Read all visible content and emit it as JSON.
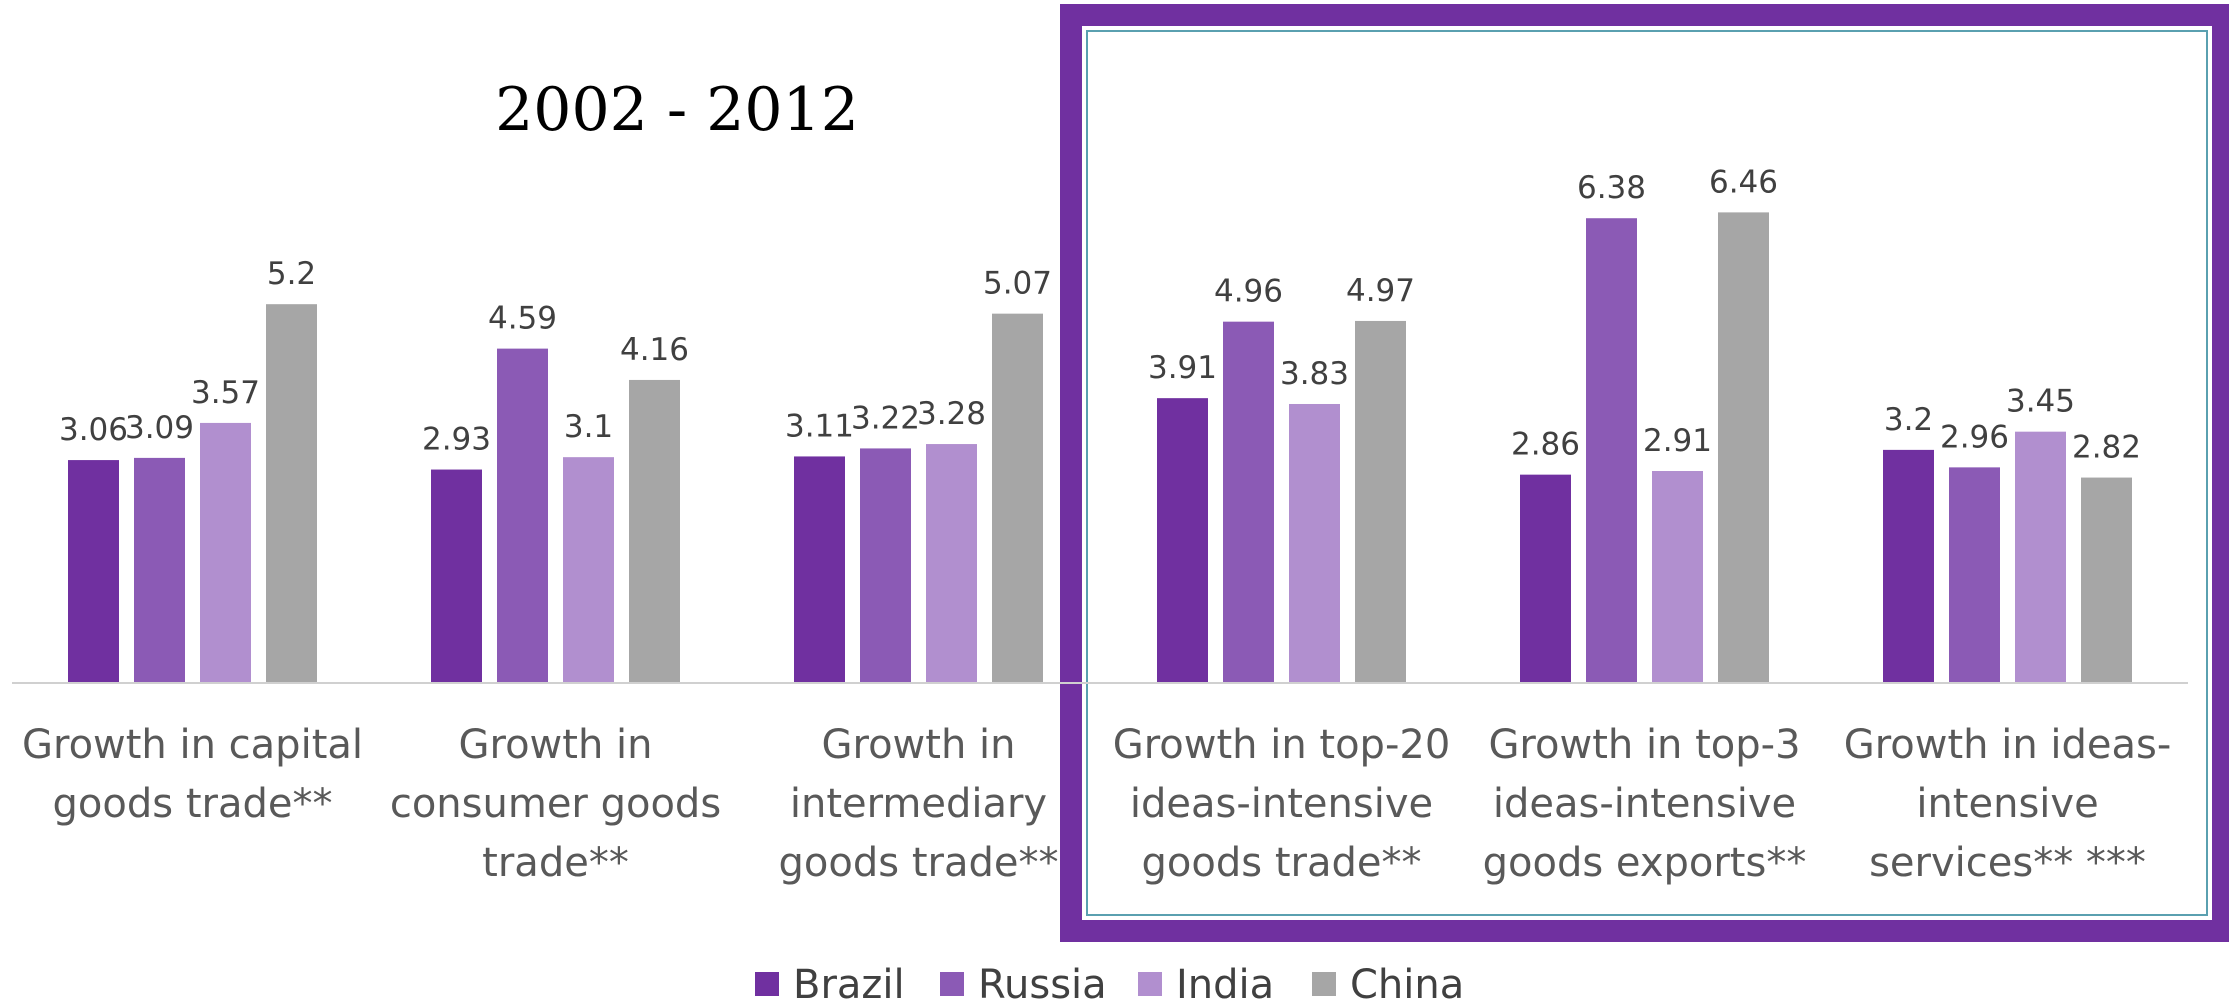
{
  "chart_data": {
    "type": "bar",
    "title": "2002 - 2012",
    "categories": [
      [
        "Growth in capital",
        "goods trade**"
      ],
      [
        "Growth in",
        "consumer goods",
        "trade**"
      ],
      [
        "Growth in",
        "intermediary",
        "goods trade**"
      ],
      [
        "Growth in top-20",
        "ideas-intensive",
        "goods trade**"
      ],
      [
        "Growth in top-3",
        "ideas-intensive",
        "goods exports**"
      ],
      [
        "Growth in ideas-",
        "intensive",
        "services** ***"
      ]
    ],
    "series": [
      {
        "name": "Brazil",
        "color": "#7030a0",
        "values": [
          3.06,
          2.93,
          3.11,
          3.91,
          2.86,
          3.2
        ]
      },
      {
        "name": "Russia",
        "color": "#8b5ab5",
        "values": [
          3.09,
          4.59,
          3.22,
          4.96,
          6.38,
          2.96
        ]
      },
      {
        "name": "India",
        "color": "#b18fcf",
        "values": [
          3.57,
          3.1,
          3.28,
          3.83,
          2.91,
          3.45
        ]
      },
      {
        "name": "China",
        "color": "#a6a6a6",
        "values": [
          5.2,
          4.16,
          5.07,
          4.97,
          6.46,
          2.82
        ]
      }
    ],
    "ylim": [
      0,
      7
    ],
    "grid": false,
    "legend_position": "bottom",
    "highlight_box_color": "#7030a0",
    "highlight_categories": [
      3,
      4,
      5
    ]
  }
}
